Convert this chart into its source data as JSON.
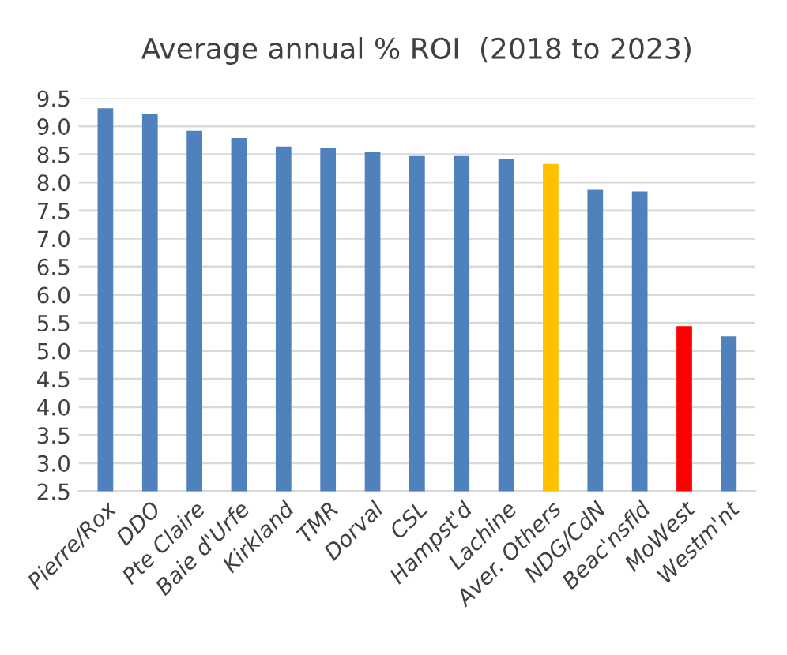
{
  "chart_data": {
    "type": "bar",
    "title": "Average annual % ROI  (2018 to 2023)",
    "categories": [
      "Pierre/Rox",
      "DDO",
      "Pte Claire",
      "Baie d'Urfe",
      "Kirkland",
      "TMR",
      "Dorval",
      "CSL",
      "Hampst'd",
      "Lachine",
      "Aver. Others",
      "NDG/CdN",
      "Beac'nsfld",
      "MoWest",
      "Westm'nt"
    ],
    "values": [
      9.32,
      9.22,
      8.92,
      8.79,
      8.64,
      8.62,
      8.54,
      8.47,
      8.47,
      8.41,
      8.33,
      7.87,
      7.84,
      5.44,
      5.26
    ],
    "colors": [
      "#4f81bd",
      "#4f81bd",
      "#4f81bd",
      "#4f81bd",
      "#4f81bd",
      "#4f81bd",
      "#4f81bd",
      "#4f81bd",
      "#4f81bd",
      "#4f81bd",
      "#ffc000",
      "#4f81bd",
      "#4f81bd",
      "#ff0000",
      "#4f81bd"
    ],
    "ylim": [
      2.5,
      9.5
    ],
    "yticks": [
      {
        "value": 2.5,
        "label": "2.5"
      },
      {
        "value": 3,
        "label": "3.0"
      },
      {
        "value": 3.5,
        "label": "3.5"
      },
      {
        "value": 4,
        "label": "4.0"
      },
      {
        "value": 4.5,
        "label": "4.5"
      },
      {
        "value": 5,
        "label": "5.0"
      },
      {
        "value": 5.5,
        "label": "5.5"
      },
      {
        "value": 6,
        "label": "6.0"
      },
      {
        "value": 6.5,
        "label": "6.5"
      },
      {
        "value": 7,
        "label": "7.0"
      },
      {
        "value": 7.5,
        "label": "7.5"
      },
      {
        "value": 8,
        "label": "8.0"
      },
      {
        "value": 8.5,
        "label": "8.5"
      },
      {
        "value": 9,
        "label": "9.0"
      },
      {
        "value": 9.5,
        "label": "9.5"
      }
    ],
    "grid": "y"
  }
}
